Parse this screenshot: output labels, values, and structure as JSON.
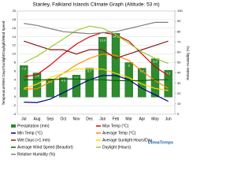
{
  "chart_data": {
    "type": "combo",
    "title": "Stanley, Falkland Islands Climate Graph (Altitude: 53 m)",
    "y_label": "Temperature/Wet Days/Sunlight/Daylight/Wind Speed",
    "y2_label": "Relative Humidity (%)",
    "watermark": "ClimaTemps",
    "categories": [
      "Jul",
      "Aug",
      "Sep",
      "Oct",
      "Nov",
      "Dec",
      "Jan",
      "Feb",
      "Mar",
      "Apr",
      "May",
      "Jun"
    ],
    "ylim": [
      -4,
      20
    ],
    "yticks": [
      -4,
      -2,
      0,
      2,
      4,
      6,
      8,
      10,
      12,
      14,
      16,
      18,
      20
    ],
    "y2lim": [
      0,
      100
    ],
    "y2ticks": [
      0,
      10,
      20,
      30,
      40,
      50,
      60,
      70,
      80,
      90,
      100
    ],
    "grid": true,
    "series": [
      {
        "name": "Precipitation (mm)",
        "type": "bar",
        "color": "#2e8b2e",
        "values": [
          7.3,
          5.6,
          4.2,
          4.5,
          5.1,
          6.7,
          13.9,
          14.8,
          8.0,
          6.7,
          8.9,
          6.2
        ]
      },
      {
        "name": "Max Temp (°C)",
        "type": "line",
        "color": "#e00000",
        "values": [
          4.7,
          5.2,
          7.4,
          10,
          12.3,
          14,
          15,
          14.5,
          13,
          10,
          7,
          5
        ]
      },
      {
        "name": "Min Temp (°C)",
        "type": "line",
        "color": "#00008b",
        "values": [
          -1.2,
          -1.3,
          -0.5,
          1,
          2.5,
          4,
          5,
          5,
          4,
          2,
          0.5,
          -1
        ]
      },
      {
        "name": "Average Temp (°C)",
        "type": "line",
        "color": "#ff8c00",
        "values": [
          1.8,
          1.9,
          3.5,
          5.5,
          7.5,
          9,
          10,
          9.7,
          8.5,
          6,
          3.8,
          2
        ]
      },
      {
        "name": "Wet Days (>1 mm)",
        "type": "line",
        "color": "#8b1a1a",
        "values": [
          13,
          12,
          11,
          11,
          10,
          11,
          11,
          9,
          10,
          11,
          12,
          13
        ]
      },
      {
        "name": "Average Sunlight Hours/Day",
        "type": "line",
        "color": "#ffd700",
        "values": [
          2,
          3,
          4.5,
          5.5,
          6.5,
          6.5,
          6.5,
          5.5,
          4.5,
          3,
          2,
          1.5
        ]
      },
      {
        "name": "Average Wind Speed (Beaufort)",
        "type": "line",
        "color": "#006400",
        "values": [
          4,
          4,
          4,
          4.2,
          4.2,
          4,
          4,
          3.8,
          3.8,
          3.8,
          4,
          4
        ]
      },
      {
        "name": "Daylight (Hours)",
        "type": "line",
        "color": "#9acd32",
        "values": [
          8,
          9.5,
          11.5,
          13.5,
          15.5,
          16.5,
          16,
          14.5,
          12.5,
          10.5,
          9,
          7.8
        ]
      },
      {
        "name": "Relative Humidity (%)",
        "type": "line",
        "axis": "y2",
        "color": "#808080",
        "values": [
          88,
          86,
          83,
          80,
          79,
          78,
          79,
          80,
          83,
          86,
          89,
          89
        ]
      }
    ]
  }
}
